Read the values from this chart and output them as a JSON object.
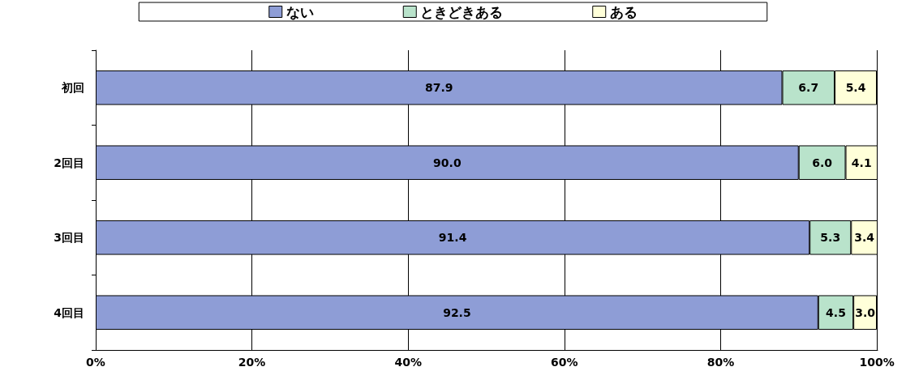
{
  "chart_data": {
    "type": "bar",
    "orientation": "horizontal",
    "stacked": true,
    "categories": [
      "初回",
      "2回目",
      "3回目",
      "4回目"
    ],
    "series": [
      {
        "name": "ない",
        "color": "#8e9dd6",
        "values": [
          87.9,
          90.0,
          91.4,
          92.5
        ],
        "value_labels": [
          "87.9",
          "90.0",
          "91.4",
          "92.5"
        ]
      },
      {
        "name": "ときどきある",
        "color": "#b9e3cb",
        "values": [
          6.7,
          6.0,
          5.3,
          4.5
        ],
        "value_labels": [
          "6.7",
          "6.0",
          "5.3",
          "4.5"
        ]
      },
      {
        "name": "ある",
        "color": "#ffffd9",
        "values": [
          5.4,
          4.1,
          3.4,
          3.0
        ],
        "value_labels": [
          "5.4",
          "4.1",
          "3.4",
          "3.0"
        ]
      }
    ],
    "xlim": [
      0,
      100.1
    ],
    "xticks": [
      {
        "value": 0,
        "label": "0%"
      },
      {
        "value": 20,
        "label": "20%"
      },
      {
        "value": 40,
        "label": "40%"
      },
      {
        "value": 60,
        "label": "60%"
      },
      {
        "value": 80,
        "label": "80%"
      },
      {
        "value": 100,
        "label": "100%"
      }
    ],
    "grid": "x",
    "legend": "top"
  }
}
